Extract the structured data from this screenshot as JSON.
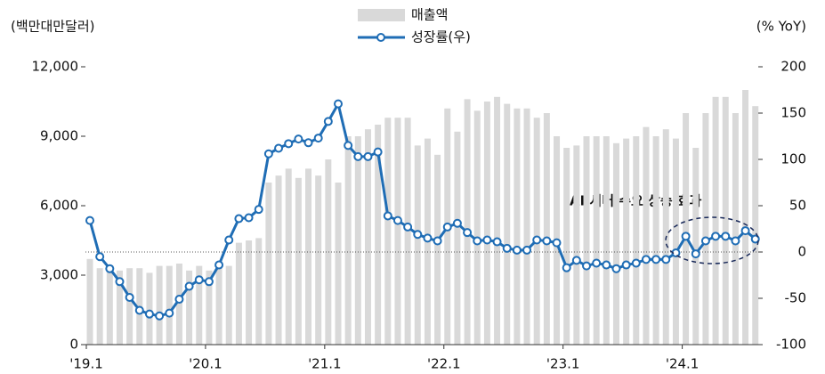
{
  "chart_data": {
    "type": "bar-line",
    "y_label": "(백만대만달러)",
    "y2_label": "(% YoY)",
    "annotation": "AI 서버 수요 상승 효과",
    "categories": [
      "'19.1",
      null,
      null,
      null,
      null,
      null,
      null,
      null,
      null,
      null,
      null,
      null,
      "'20.1",
      null,
      null,
      null,
      null,
      null,
      null,
      null,
      null,
      null,
      null,
      null,
      "'21.1",
      null,
      null,
      null,
      null,
      null,
      null,
      null,
      null,
      null,
      null,
      null,
      "'22.1",
      null,
      null,
      null,
      null,
      null,
      null,
      null,
      null,
      null,
      null,
      null,
      "'23.1",
      null,
      null,
      null,
      null,
      null,
      null,
      null,
      null,
      null,
      null,
      null,
      "'24.1",
      null,
      null,
      null,
      null,
      null,
      null,
      null
    ],
    "series": [
      {
        "name": "매출액",
        "type": "bar",
        "color": "#d9d9d9",
        "values": [
          3700,
          3300,
          3300,
          3200,
          3300,
          3300,
          3100,
          3400,
          3400,
          3500,
          3200,
          3400,
          3200,
          3300,
          3400,
          4400,
          4500,
          4600,
          7000,
          7300,
          7600,
          7200,
          7600,
          7300,
          8000,
          7000,
          9000,
          9000,
          9300,
          9500,
          9800,
          9800,
          9800,
          8600,
          8900,
          8200,
          10200,
          9200,
          10600,
          10100,
          10500,
          10700,
          10400,
          10200,
          10200,
          9800,
          10000,
          9000,
          8500,
          8600,
          9000,
          9000,
          9000,
          8700,
          8900,
          9000,
          9400,
          9000,
          9300,
          8900,
          10000,
          8500,
          10000,
          10700,
          10700,
          10000,
          11000,
          10300
        ]
      },
      {
        "name": "성장률(우)",
        "type": "line",
        "axis": "y2",
        "color": "#1f6db5",
        "values": [
          34,
          -5,
          -18,
          -32,
          -49,
          -63,
          -67,
          -69,
          -66,
          -51,
          -37,
          -30,
          -32,
          -14,
          13,
          36,
          37,
          46,
          106,
          112,
          117,
          122,
          118,
          123,
          141,
          160,
          115,
          103,
          103,
          108,
          39,
          34,
          27,
          19,
          15,
          12,
          27,
          31,
          21,
          12,
          13,
          11,
          4,
          2,
          2,
          13,
          12,
          10,
          -17,
          -9,
          -15,
          -12,
          -14,
          -18,
          -14,
          -12,
          -8,
          -8,
          -8,
          -1,
          17,
          -2,
          12,
          17,
          17,
          12,
          23,
          14
        ]
      }
    ],
    "ylim": [
      0,
      12000
    ],
    "yticks": [
      0,
      {
        "value": 3000,
        "label": "3,000"
      },
      {
        "value": 6000,
        "label": "6,000"
      },
      {
        "value": 9000,
        "label": "9,000"
      },
      {
        "value": 12000,
        "label": "12,000"
      }
    ],
    "y2lim": [
      -100,
      200
    ],
    "y2ticks": [
      -100,
      -50,
      0,
      50,
      100,
      150,
      200
    ]
  }
}
